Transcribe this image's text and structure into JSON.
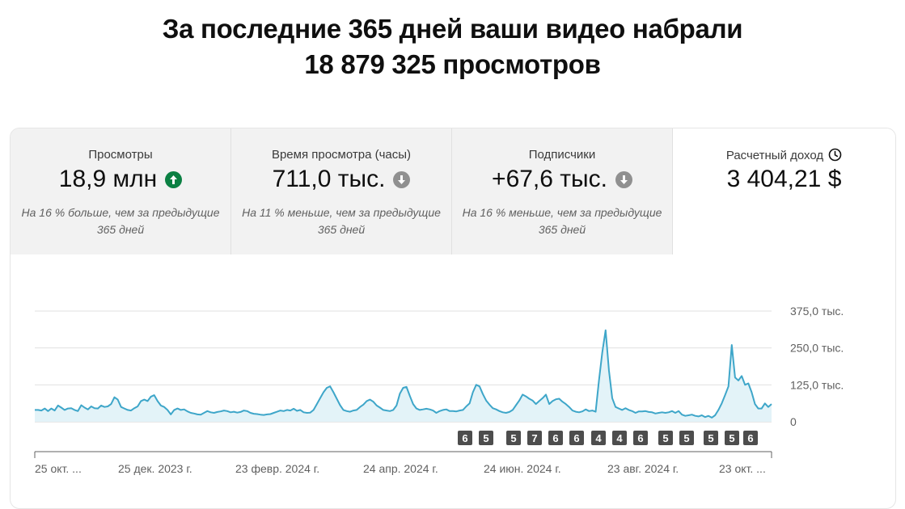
{
  "headline": {
    "line1": "За последние 365 дней ваши видео набрали",
    "line2": "18 879 325 просмотров"
  },
  "tabs": [
    {
      "label": "Просмотры",
      "value": "18,9 млн",
      "trend": "up",
      "trend_icon": "arrow-up-icon",
      "note": "На 16 % больше, чем за предыдущие 365 дней"
    },
    {
      "label": "Время просмотра (часы)",
      "value": "711,0 тыс.",
      "trend": "down",
      "trend_icon": "arrow-down-icon",
      "note": "На 11 % меньше, чем за предыдущие 365 дней"
    },
    {
      "label": "Подписчики",
      "value": "+67,6 тыс.",
      "trend": "down",
      "trend_icon": "arrow-down-icon",
      "note": "На 16 % меньше, чем за предыдущие 365 дней"
    },
    {
      "label": "Расчетный доход",
      "value": "3 404,21 $",
      "label_icon": "clock-icon"
    }
  ],
  "colors": {
    "line": "#3ea6c9",
    "fill": "#e3f3f8",
    "grid": "#e0e0e0",
    "badge": "#4d4d4d",
    "up": "#0b8043",
    "down": "#909090"
  },
  "chart_data": {
    "type": "area",
    "y_ticks": [
      "375,0 тыс.",
      "250,0 тыс.",
      "125,0 тыс.",
      "0"
    ],
    "ylim": [
      0,
      375000
    ],
    "x_tick_labels": [
      "25 окт. ...",
      "25 дек. 2023 г.",
      "23 февр. 2024 г.",
      "24 апр. 2024 г.",
      "24 июн. 2024 г.",
      "23 авг. 2024 г.",
      "23 окт. ..."
    ],
    "series": [
      {
        "values": [
          40000,
          40000,
          38000,
          45000,
          36000,
          45000,
          38000,
          55000,
          48000,
          40000,
          45000,
          46000,
          40000,
          36000,
          56000,
          48000,
          42000,
          52000,
          46000,
          45000,
          55000,
          50000,
          52000,
          60000,
          83000,
          75000,
          50000,
          45000,
          40000,
          38000,
          46000,
          52000,
          70000,
          75000,
          70000,
          85000,
          90000,
          70000,
          55000,
          50000,
          40000,
          25000,
          40000,
          45000,
          40000,
          42000,
          35000,
          30000,
          28000,
          25000,
          24000,
          30000,
          36000,
          32000,
          30000,
          33000,
          35000,
          38000,
          36000,
          32000,
          34000,
          31000,
          33000,
          38000,
          36000,
          30000,
          27000,
          26000,
          24000,
          23000,
          25000,
          26000,
          30000,
          34000,
          38000,
          36000,
          40000,
          38000,
          44000,
          37000,
          40000,
          32000,
          30000,
          31000,
          40000,
          60000,
          80000,
          100000,
          115000,
          120000,
          100000,
          78000,
          56000,
          40000,
          36000,
          34000,
          38000,
          40000,
          50000,
          58000,
          70000,
          75000,
          68000,
          55000,
          48000,
          40000,
          38000,
          36000,
          40000,
          55000,
          95000,
          115000,
          118000,
          88000,
          60000,
          45000,
          40000,
          42000,
          44000,
          42000,
          38000,
          30000,
          36000,
          40000,
          42000,
          36000,
          36000,
          35000,
          38000,
          40000,
          52000,
          62000,
          100000,
          125000,
          120000,
          94000,
          72000,
          58000,
          46000,
          42000,
          36000,
          32000,
          30000,
          33000,
          40000,
          56000,
          72000,
          92000,
          86000,
          78000,
          72000,
          60000,
          70000,
          80000,
          92000,
          60000,
          70000,
          76000,
          78000,
          68000,
          60000,
          50000,
          38000,
          34000,
          32000,
          35000,
          42000,
          36000,
          38000,
          34000,
          140000,
          235000,
          310000,
          175000,
          80000,
          50000,
          45000,
          40000,
          46000,
          40000,
          36000,
          30000,
          35000,
          35000,
          36000,
          33000,
          32000,
          28000,
          30000,
          32000,
          30000,
          32000,
          36000,
          30000,
          36000,
          24000,
          20000,
          22000,
          24000,
          20000,
          18000,
          22000,
          16000,
          20000,
          14000,
          22000,
          40000,
          62000,
          90000,
          120000,
          260000,
          150000,
          140000,
          155000,
          125000,
          130000,
          100000,
          60000,
          45000,
          45000,
          62000,
          50000,
          60000
        ]
      }
    ],
    "badges": [
      "6",
      "5",
      "5",
      "7",
      "6",
      "6",
      "4",
      "4",
      "6",
      "5",
      "5",
      "5",
      "5",
      "6"
    ]
  }
}
